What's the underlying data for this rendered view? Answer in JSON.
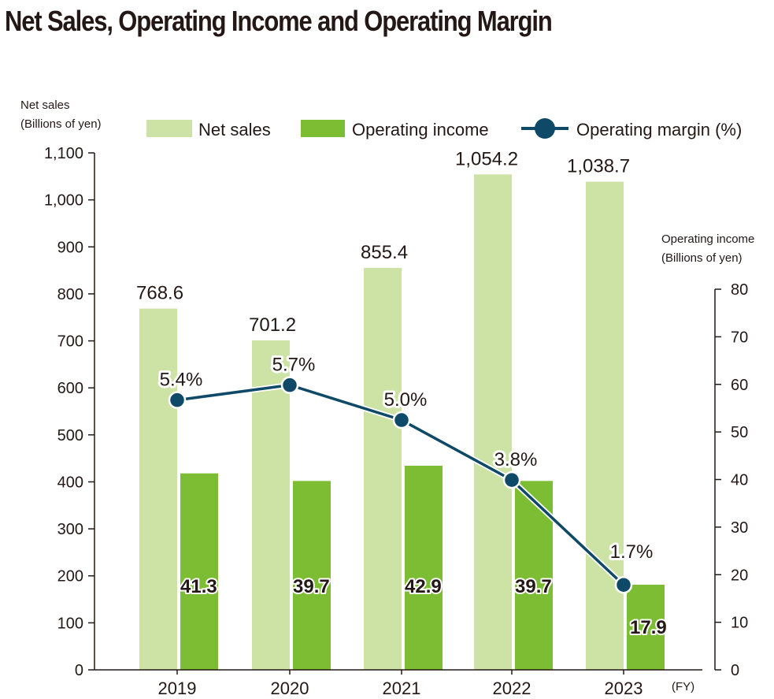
{
  "title": "Net Sales, Operating Income and Operating Margin",
  "chart_data": {
    "type": "bar",
    "categories": [
      "2019",
      "2020",
      "2021",
      "2022",
      "2023"
    ],
    "x_unit": "(FY)",
    "series": [
      {
        "name": "Net sales",
        "axis": "left",
        "kind": "bar",
        "color": "#cde3a6",
        "values": [
          768.6,
          701.2,
          855.4,
          1054.2,
          1038.7
        ],
        "labels": [
          "768.6",
          "701.2",
          "855.4",
          "1,054.2",
          "1,038.7"
        ]
      },
      {
        "name": "Operating income",
        "axis": "right",
        "kind": "bar",
        "color": "#7cbd34",
        "values": [
          41.3,
          39.7,
          42.9,
          39.7,
          17.9
        ],
        "labels": [
          "41.3",
          "39.7",
          "42.9",
          "39.7",
          "17.9"
        ]
      },
      {
        "name": "Operating margin (%)",
        "axis": "right",
        "kind": "line",
        "color": "#0e4a67",
        "values": [
          5.4,
          5.7,
          5.0,
          3.8,
          1.7
        ],
        "labels": [
          "5.4%",
          "5.7%",
          "5.0%",
          "3.8%",
          "1.7%"
        ]
      }
    ],
    "y_left": {
      "label_lines": [
        "Net sales",
        "(Billions of yen)"
      ],
      "ylim": [
        0,
        1100
      ],
      "ticks": [
        0,
        100,
        200,
        300,
        400,
        500,
        600,
        700,
        800,
        900,
        1000,
        1100
      ],
      "tick_labels": [
        "0",
        "100",
        "200",
        "300",
        "400",
        "500",
        "600",
        "700",
        "800",
        "900",
        "1,000",
        "1,100"
      ]
    },
    "y_right": {
      "label_lines": [
        "Operating income",
        "(Billions of yen)"
      ],
      "ylim": [
        0,
        80
      ],
      "ticks": [
        0,
        10,
        20,
        30,
        40,
        50,
        60,
        70,
        80
      ],
      "tick_labels": [
        "0",
        "10",
        "20",
        "30",
        "40",
        "50",
        "60",
        "70",
        "80"
      ]
    },
    "legend": {
      "position": "top"
    }
  }
}
